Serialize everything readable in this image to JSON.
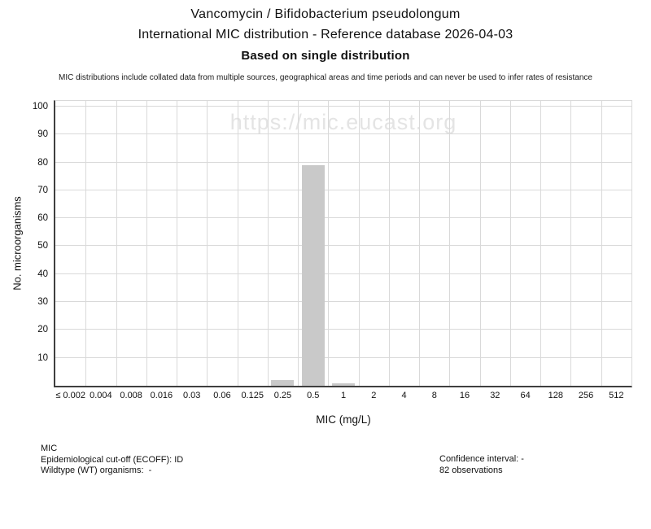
{
  "header": {
    "line1": "Vancomycin / Bifidobacterium pseudolongum",
    "line2": "International MIC distribution - Reference database 2026-04-03",
    "line3": "Based on single distribution",
    "disclaimer": "MIC distributions include collated data from multiple sources, geographical areas and time periods and can never be used to infer rates of resistance"
  },
  "watermark": "https://mic.eucast.org",
  "chart_data": {
    "type": "bar",
    "title": "Vancomycin / Bifidobacterium pseudolongum — International MIC distribution",
    "xlabel": "MIC (mg/L)",
    "ylabel": "No. microorganisms",
    "categories": [
      "≤ 0.002",
      "0.004",
      "0.008",
      "0.016",
      "0.03",
      "0.06",
      "0.125",
      "0.25",
      "0.5",
      "1",
      "2",
      "4",
      "8",
      "16",
      "32",
      "64",
      "128",
      "256",
      "512"
    ],
    "values": [
      0,
      0,
      0,
      0,
      0,
      0,
      0,
      2,
      79,
      1,
      0,
      0,
      0,
      0,
      0,
      0,
      0,
      0,
      0
    ],
    "yticks": [
      10,
      20,
      30,
      40,
      50,
      60,
      70,
      80,
      90,
      100
    ],
    "ylim": [
      0,
      102
    ],
    "grid": true,
    "legend": "none",
    "bar_color": "#c9c9c9",
    "grid_color": "#d9d9d9",
    "axis_color": "#3f3f3f",
    "total_observations": 82
  },
  "footer": {
    "left": [
      "MIC",
      "Epidemiological cut-off (ECOFF): ID",
      "Wildtype (WT) organisms:  -"
    ],
    "right": [
      "Confidence interval: -",
      "82 observations"
    ]
  }
}
